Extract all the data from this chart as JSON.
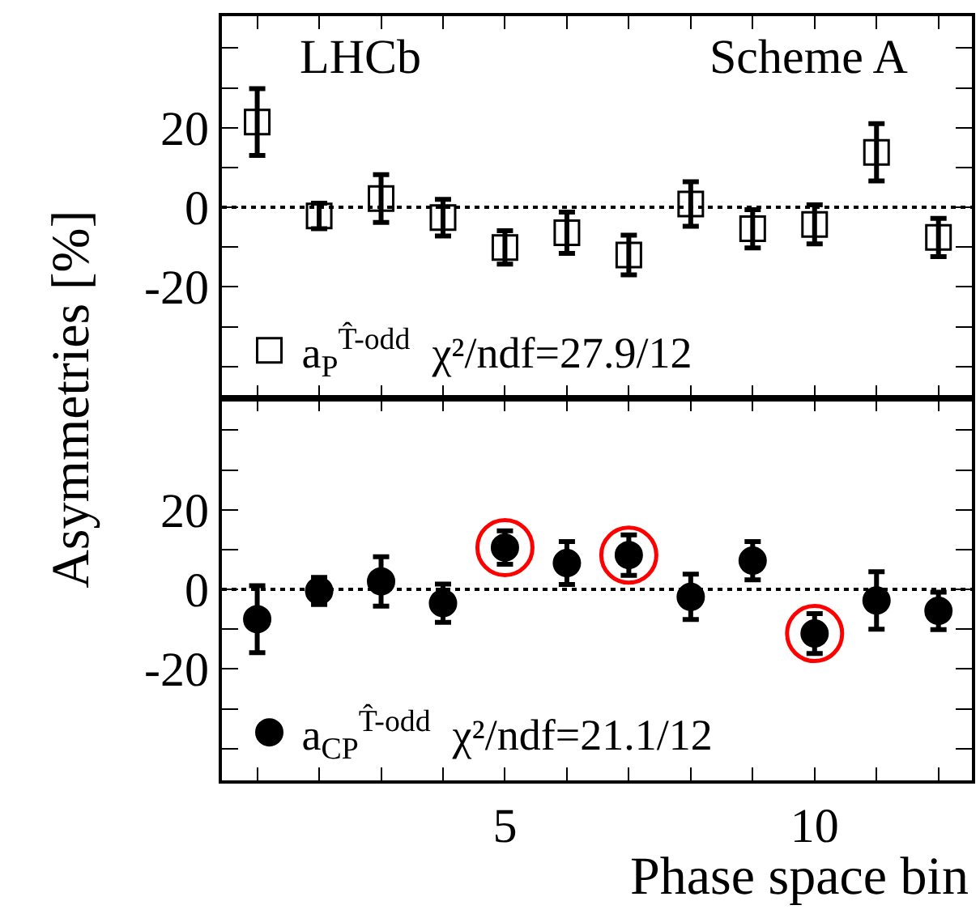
{
  "chart_data": [
    {
      "type": "scatter",
      "ylabel": "Asymmetries [%]",
      "annotations": [
        "LHCb",
        "Scheme A"
      ],
      "x": [
        1,
        2,
        3,
        4,
        5,
        6,
        7,
        8,
        9,
        10,
        11,
        12
      ],
      "xlim": [
        0.43,
        12.54
      ],
      "xticks": [
        {
          "value": 1,
          "label": null
        },
        {
          "value": 2,
          "label": null
        },
        {
          "value": 3,
          "label": null
        },
        {
          "value": 4,
          "label": null
        },
        {
          "value": 5,
          "label": null
        },
        {
          "value": 6,
          "label": null
        },
        {
          "value": 7,
          "label": null
        },
        {
          "value": 8,
          "label": null
        },
        {
          "value": 9,
          "label": null
        },
        {
          "value": 10,
          "label": null
        },
        {
          "value": 11,
          "label": null
        },
        {
          "value": 12,
          "label": null
        }
      ],
      "ylim": [
        -48,
        48
      ],
      "yticks": [
        {
          "value": -40,
          "label": null
        },
        {
          "value": -30,
          "label": null
        },
        -20,
        {
          "value": -10,
          "label": null
        },
        0,
        {
          "value": 10,
          "label": null
        },
        20,
        {
          "value": 30,
          "label": null
        },
        {
          "value": 40,
          "label": null
        }
      ],
      "tick_labels": "y",
      "legend": "bottom left",
      "marker": "square",
      "ref_lines": [
        {
          "axis": "y",
          "value": 0,
          "line_style": "dotted",
          "color": "#000000"
        }
      ],
      "series": [
        {
          "name": "a$_{P}$$^{T̂-odd}$  χ²/ndf=27.9/12",
          "color": "#000000",
          "values": [
            21.4,
            -2.2,
            2.2,
            -2.6,
            -10.1,
            -6.4,
            -12.0,
            0.8,
            -5.4,
            -4.3,
            13.8,
            -7.6
          ],
          "errors": [
            8.4,
            3.2,
            6.0,
            4.6,
            4.2,
            5.2,
            5.0,
            5.6,
            4.8,
            4.9,
            7.2,
            4.8
          ]
        }
      ]
    },
    {
      "type": "scatter",
      "xlabel": "Phase space bin",
      "x": [
        1,
        2,
        3,
        4,
        5,
        6,
        7,
        8,
        9,
        10,
        11,
        12
      ],
      "xlim": [
        0.43,
        12.54
      ],
      "xticks": [
        {
          "value": 1,
          "label": null
        },
        {
          "value": 2,
          "label": null
        },
        {
          "value": 3,
          "label": null
        },
        {
          "value": 4,
          "label": null
        },
        {
          "value": 5,
          "label": "5"
        },
        {
          "value": 6,
          "label": null
        },
        {
          "value": 7,
          "label": null
        },
        {
          "value": 8,
          "label": null
        },
        {
          "value": 9,
          "label": null
        },
        {
          "value": 10,
          "label": "10"
        },
        {
          "value": 11,
          "label": null
        },
        {
          "value": 12,
          "label": null
        }
      ],
      "ylim": [
        -48,
        48
      ],
      "yticks": [
        {
          "value": -40,
          "label": null
        },
        {
          "value": -30,
          "label": null
        },
        -20,
        {
          "value": -10,
          "label": null
        },
        0,
        {
          "value": 10,
          "label": null
        },
        20,
        {
          "value": 30,
          "label": null
        },
        {
          "value": 40,
          "label": null
        }
      ],
      "legend": "bottom left",
      "marker": "circle",
      "ref_lines": [
        {
          "axis": "y",
          "value": 0,
          "line_style": "dotted",
          "color": "#000000"
        }
      ],
      "series": [
        {
          "name": "a$_{CP}$$^{T̂-odd}$  χ²/ndf=21.1/12",
          "color": "#000000",
          "values": [
            -7.5,
            -0.4,
            2.0,
            -3.5,
            10.5,
            6.6,
            8.6,
            -1.9,
            7.2,
            -11.1,
            -2.8,
            -5.4
          ],
          "errors": [
            8.4,
            3.4,
            6.2,
            4.8,
            4.2,
            5.4,
            5.1,
            5.7,
            4.8,
            5.0,
            7.2,
            4.7
          ]
        },
        {
          "color": "#ff0000",
          "x": [
            5,
            7,
            10
          ],
          "values": [
            10.5,
            8.6,
            -11.1
          ]
        }
      ]
    }
  ]
}
